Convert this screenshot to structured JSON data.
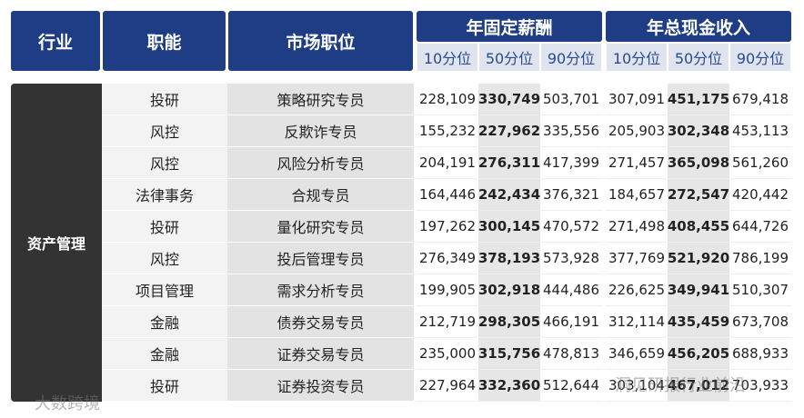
{
  "header": {
    "industry": "行业",
    "function": "职能",
    "position": "市场职位",
    "groups": [
      {
        "title": "年固定薪酬",
        "percentiles": [
          "10分位",
          "50分位",
          "90分位"
        ]
      },
      {
        "title": "年总现金收入",
        "percentiles": [
          "10分位",
          "50分位",
          "90分位"
        ]
      }
    ]
  },
  "table": {
    "industry": "资产管理",
    "rows": [
      [
        "投研",
        "策略研究专员",
        "228,109",
        "330,749",
        "503,701",
        "307,091",
        "451,175",
        "679,418"
      ],
      [
        "风控",
        "反欺诈专员",
        "155,232",
        "227,962",
        "335,556",
        "205,903",
        "302,348",
        "453,113"
      ],
      [
        "风控",
        "风险分析专员",
        "204,191",
        "276,311",
        "417,399",
        "271,457",
        "365,098",
        "561,260"
      ],
      [
        "法律事务",
        "合规专员",
        "164,446",
        "242,434",
        "376,321",
        "184,657",
        "272,547",
        "420,442"
      ],
      [
        "投研",
        "量化研究专员",
        "197,262",
        "300,145",
        "470,572",
        "271,498",
        "408,455",
        "644,726"
      ],
      [
        "风控",
        "投后管理专员",
        "276,349",
        "378,193",
        "573,928",
        "377,769",
        "521,920",
        "786,199"
      ],
      [
        "项目管理",
        "需求分析专员",
        "199,905",
        "302,918",
        "444,486",
        "226,625",
        "349,941",
        "510,307"
      ],
      [
        "金融",
        "债券交易专员",
        "212,719",
        "298,305",
        "466,191",
        "312,114",
        "435,459",
        "673,708"
      ],
      [
        "金融",
        "证券交易专员",
        "235,000",
        "315,756",
        "478,813",
        "346,659",
        "456,205",
        "688,933"
      ],
      [
        "投研",
        "证券投资专员",
        "227,964",
        "332,360",
        "512,644",
        "303,104",
        "467,012",
        "703,933"
      ]
    ]
  },
  "watermarks": [
    "大数跨境",
    "洞见研报行业前沿"
  ]
}
